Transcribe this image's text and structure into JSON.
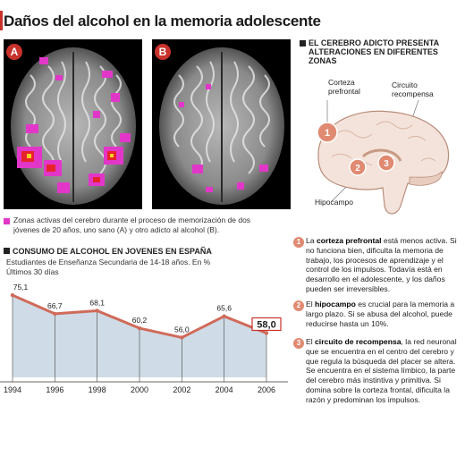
{
  "header": {
    "title": "Daños del alcohol en la memoria adolescente"
  },
  "brain_panels": [
    {
      "badge": "A",
      "label": "brain-scan-sano"
    },
    {
      "badge": "B",
      "label": "brain-scan-adicto"
    }
  ],
  "legend": {
    "swatch_color": "#e236c9",
    "text": "Zonas activas del cerebro durante el proceso de memorización de dos jóvenes de 20 años, uno sano (A) y otro adicto al alcohol (B)."
  },
  "diagram": {
    "heading_line1": "EL CEREBRO ADICTO PRESENTA",
    "heading_line2": "ALTERACIONES EN DIFERENTES",
    "heading_line3": "ZONAS",
    "labels": {
      "corteza_line1": "Corteza",
      "corteza_line2": "prefrontal",
      "circuito_line1": "Circuito",
      "circuito_line2": "recompensa",
      "hipocampo": "Hipocampo"
    },
    "markers": [
      "1",
      "2",
      "3"
    ]
  },
  "explanations": [
    {
      "num": "1",
      "bold": "corteza prefrontal",
      "before": "La ",
      "after": " está menos activa. Si no funciona bien, dificulta la memoria de trabajo, los procesos de aprendizaje y el control de los impulsos. Todavía está en desarrollo en el adolescente, y los daños pueden ser irreversibles."
    },
    {
      "num": "2",
      "bold": "hipocampo",
      "before": "El ",
      "after": " es crucial para la memoria a largo plazo. Si se abusa del alcohol, puede reducirse hasta un 10%."
    },
    {
      "num": "3",
      "bold": "circuito de recompensa",
      "before": "El ",
      "after": ", la red neuronal que se encuentra en el centro del cerebro y que regula la búsqueda del placer se altera. Se encuentra en el sistema límbico, la parte del cerebro más instintiva y primitiva. Si domina sobre la corteza frontal, dificulta la razón y predominan los impulsos."
    }
  ],
  "chart_section": {
    "heading": "CONSUMO DE ALCOHOL EN JOVENES EN ESPAÑA",
    "source": "Estudiantes de Enseñanza Secundaria de 14-18 años. En %",
    "period": "Últimos 30 días"
  },
  "chart_data": {
    "type": "area",
    "title": "CONSUMO DE ALCOHOL EN JOVENES EN ESPAÑA",
    "subtitle": "Estudiantes de Enseñanza Secundaria de 14-18 años. En %",
    "x": [
      "1994",
      "1996",
      "1998",
      "2000",
      "2002",
      "2004",
      "2006"
    ],
    "values": [
      75.1,
      66.7,
      68.1,
      60.2,
      56.0,
      65.6,
      58.0
    ],
    "value_labels": [
      "75,1",
      "66,7",
      "68,1",
      "60,2",
      "56,0",
      "65,6",
      "58,0"
    ],
    "highlight_last": true,
    "xlabel": "",
    "ylabel": "",
    "ylim": [
      38,
      80
    ],
    "grid": false,
    "colors": {
      "line": "#d06a5a",
      "fill": "#cfdbe6",
      "highlight_border": "#c8322b"
    }
  },
  "colors": {
    "accent": "#c8322b",
    "activity": "#e236c9"
  }
}
